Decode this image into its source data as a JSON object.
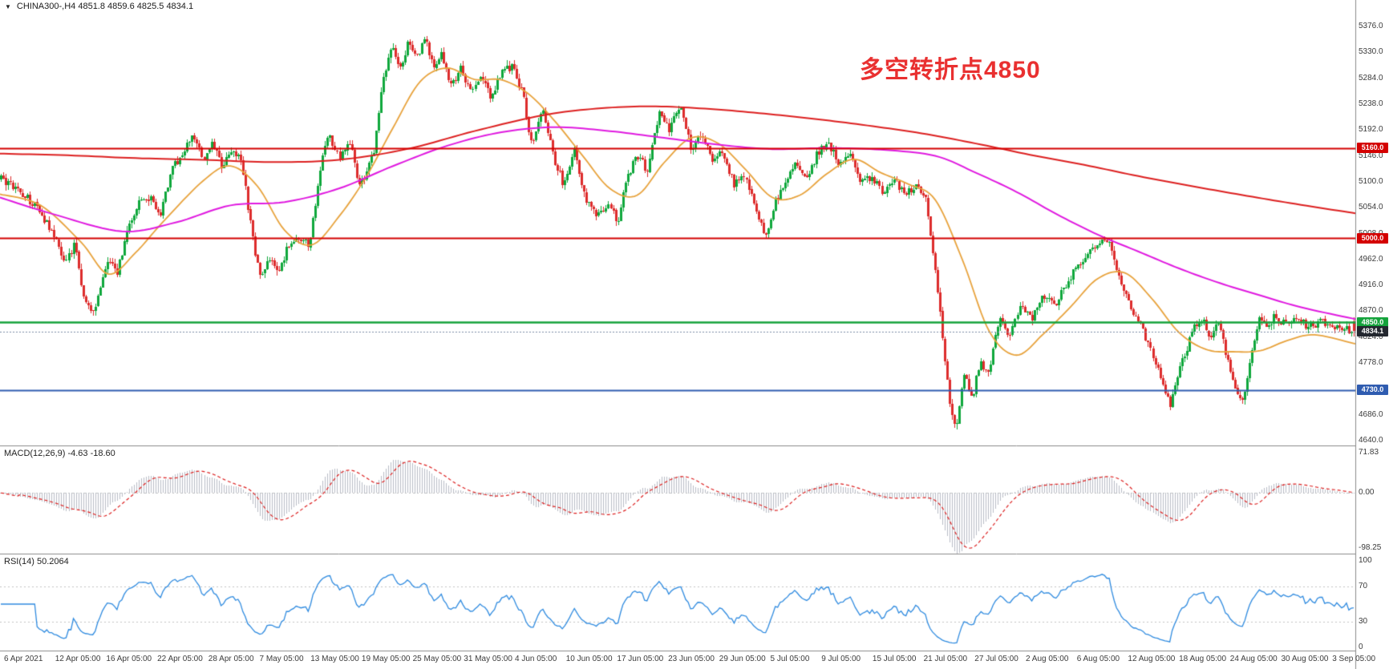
{
  "header": {
    "symbol_info": "CHINA300-,H4  4851.8 4859.6 4825.5 4834.1",
    "collapse_glyph": "▼"
  },
  "annotation": {
    "text": "多空转折点4850",
    "color": "#e93030"
  },
  "panels": {
    "macd": {
      "label": "MACD(12,26,9) -4.63 -18.60",
      "axis_labels": [
        {
          "text": "71.83",
          "value": 71.83
        },
        {
          "text": "0.00",
          "value": 0
        },
        {
          "text": "-98.25",
          "value": -98.25
        }
      ]
    },
    "rsi": {
      "label": "RSI(14) 50.2064",
      "axis_labels": [
        {
          "text": "100",
          "value": 100
        },
        {
          "text": "70",
          "value": 70
        },
        {
          "text": "30",
          "value": 30
        },
        {
          "text": "0",
          "value": 0
        }
      ]
    }
  },
  "price_axis": {
    "tick_labels": [
      "5376.0",
      "5330.0",
      "5284.0",
      "5238.0",
      "5192.0",
      "5146.0",
      "5100.0",
      "5054.0",
      "5008.0",
      "4962.0",
      "4916.0",
      "4870.0",
      "4824.0",
      "4778.0",
      "4732.0",
      "4686.0",
      "4640.0"
    ]
  },
  "time_axis": {
    "labels": [
      "6 Apr 2021",
      "12 Apr 05:00",
      "16 Apr 05:00",
      "22 Apr 05:00",
      "28 Apr 05:00",
      "7 May 05:00",
      "13 May 05:00",
      "19 May 05:00",
      "25 May 05:00",
      "31 May 05:00",
      "4 Jun 05:00",
      "10 Jun 05:00",
      "17 Jun 05:00",
      "23 Jun 05:00",
      "29 Jun 05:00",
      "5 Jul 05:00",
      "9 Jul 05:00",
      "15 Jul 05:00",
      "21 Jul 05:00",
      "27 Jul 05:00",
      "2 Aug 05:00",
      "6 Aug 05:00",
      "12 Aug 05:00",
      "18 Aug 05:00",
      "24 Aug 05:00",
      "30 Aug 05:00",
      "3 Sep 05:00"
    ]
  },
  "colors": {
    "bull": "#0fa83c",
    "bear": "#dd2c2c",
    "ma_fast": "#e8a33d",
    "ma_mid": "#e01ae0",
    "ma_slow": "#dd2020",
    "level_red": "#d40000",
    "level_green": "#15a33c",
    "level_blue": "#2f5cb0",
    "current_line": "#7c8ea6",
    "current_tag": "#23272f",
    "macd_hist": "#b9bdc6",
    "macd_signal": "#dd2020",
    "rsi_line": "#2f8be0",
    "grid_dash": "#c4c4c4",
    "separator": "#8a8a8a",
    "axis_text": "#3b3b3b"
  },
  "chart_data": {
    "type": "candlestick",
    "symbol": "CHINA300-",
    "timeframe": "H4",
    "title": "CHINA300- H4 with MACD(12,26,9) and RSI(14)",
    "ohlc_current": {
      "open": 4851.8,
      "high": 4859.6,
      "low": 4825.5,
      "close": 4834.1
    },
    "price_axis_range": {
      "max": 5376,
      "min": 4640,
      "tick_step": 46
    },
    "n_candles": 560,
    "noise_seed": 12345,
    "price_anchors": [
      [
        0.0,
        5105
      ],
      [
        0.008,
        5092
      ],
      [
        0.016,
        5078
      ],
      [
        0.024,
        5062
      ],
      [
        0.032,
        5035
      ],
      [
        0.04,
        5000
      ],
      [
        0.048,
        4956
      ],
      [
        0.054,
        4992
      ],
      [
        0.06,
        4906
      ],
      [
        0.066,
        4866
      ],
      [
        0.072,
        4896
      ],
      [
        0.078,
        4958
      ],
      [
        0.086,
        4940
      ],
      [
        0.094,
        5022
      ],
      [
        0.102,
        5062
      ],
      [
        0.11,
        5070
      ],
      [
        0.118,
        5046
      ],
      [
        0.126,
        5118
      ],
      [
        0.134,
        5152
      ],
      [
        0.142,
        5182
      ],
      [
        0.15,
        5138
      ],
      [
        0.156,
        5166
      ],
      [
        0.163,
        5128
      ],
      [
        0.17,
        5156
      ],
      [
        0.178,
        5134
      ],
      [
        0.186,
        4998
      ],
      [
        0.192,
        4928
      ],
      [
        0.198,
        4966
      ],
      [
        0.205,
        4934
      ],
      [
        0.212,
        4986
      ],
      [
        0.22,
        5002
      ],
      [
        0.228,
        4984
      ],
      [
        0.236,
        5122
      ],
      [
        0.242,
        5186
      ],
      [
        0.25,
        5140
      ],
      [
        0.258,
        5172
      ],
      [
        0.264,
        5092
      ],
      [
        0.27,
        5112
      ],
      [
        0.276,
        5162
      ],
      [
        0.282,
        5282
      ],
      [
        0.289,
        5338
      ],
      [
        0.295,
        5298
      ],
      [
        0.301,
        5348
      ],
      [
        0.307,
        5316
      ],
      [
        0.313,
        5358
      ],
      [
        0.32,
        5298
      ],
      [
        0.326,
        5330
      ],
      [
        0.332,
        5268
      ],
      [
        0.34,
        5302
      ],
      [
        0.348,
        5256
      ],
      [
        0.355,
        5290
      ],
      [
        0.362,
        5250
      ],
      [
        0.37,
        5296
      ],
      [
        0.378,
        5306
      ],
      [
        0.386,
        5252
      ],
      [
        0.392,
        5164
      ],
      [
        0.4,
        5228
      ],
      [
        0.408,
        5148
      ],
      [
        0.416,
        5094
      ],
      [
        0.424,
        5158
      ],
      [
        0.432,
        5072
      ],
      [
        0.44,
        5036
      ],
      [
        0.448,
        5060
      ],
      [
        0.456,
        5030
      ],
      [
        0.462,
        5104
      ],
      [
        0.47,
        5148
      ],
      [
        0.478,
        5118
      ],
      [
        0.486,
        5224
      ],
      [
        0.494,
        5192
      ],
      [
        0.502,
        5240
      ],
      [
        0.51,
        5158
      ],
      [
        0.518,
        5188
      ],
      [
        0.526,
        5138
      ],
      [
        0.534,
        5154
      ],
      [
        0.542,
        5094
      ],
      [
        0.55,
        5114
      ],
      [
        0.558,
        5044
      ],
      [
        0.565,
        5000
      ],
      [
        0.572,
        5064
      ],
      [
        0.58,
        5104
      ],
      [
        0.588,
        5134
      ],
      [
        0.596,
        5108
      ],
      [
        0.604,
        5154
      ],
      [
        0.612,
        5168
      ],
      [
        0.62,
        5128
      ],
      [
        0.628,
        5150
      ],
      [
        0.636,
        5096
      ],
      [
        0.644,
        5110
      ],
      [
        0.652,
        5080
      ],
      [
        0.66,
        5102
      ],
      [
        0.668,
        5076
      ],
      [
        0.676,
        5096
      ],
      [
        0.684,
        5068
      ],
      [
        0.69,
        4952
      ],
      [
        0.696,
        4824
      ],
      [
        0.702,
        4694
      ],
      [
        0.706,
        4660
      ],
      [
        0.712,
        4756
      ],
      [
        0.718,
        4718
      ],
      [
        0.724,
        4782
      ],
      [
        0.73,
        4758
      ],
      [
        0.738,
        4856
      ],
      [
        0.746,
        4828
      ],
      [
        0.754,
        4880
      ],
      [
        0.762,
        4858
      ],
      [
        0.77,
        4900
      ],
      [
        0.778,
        4878
      ],
      [
        0.786,
        4912
      ],
      [
        0.794,
        4944
      ],
      [
        0.802,
        4968
      ],
      [
        0.81,
        4990
      ],
      [
        0.818,
        5000
      ],
      [
        0.826,
        4938
      ],
      [
        0.834,
        4880
      ],
      [
        0.842,
        4850
      ],
      [
        0.85,
        4798
      ],
      [
        0.858,
        4748
      ],
      [
        0.864,
        4700
      ],
      [
        0.87,
        4762
      ],
      [
        0.876,
        4802
      ],
      [
        0.882,
        4842
      ],
      [
        0.888,
        4860
      ],
      [
        0.894,
        4820
      ],
      [
        0.9,
        4850
      ],
      [
        0.906,
        4788
      ],
      [
        0.912,
        4730
      ],
      [
        0.918,
        4706
      ],
      [
        0.924,
        4792
      ],
      [
        0.93,
        4862
      ],
      [
        0.936,
        4844
      ],
      [
        0.942,
        4862
      ],
      [
        0.95,
        4846
      ],
      [
        0.958,
        4856
      ],
      [
        0.966,
        4842
      ],
      [
        0.975,
        4852
      ],
      [
        0.985,
        4844
      ],
      [
        1.0,
        4834
      ]
    ],
    "ma_slow_anchors": [
      [
        0.0,
        5150
      ],
      [
        0.05,
        5147
      ],
      [
        0.1,
        5142
      ],
      [
        0.15,
        5139
      ],
      [
        0.2,
        5135
      ],
      [
        0.25,
        5139
      ],
      [
        0.3,
        5158
      ],
      [
        0.35,
        5190
      ],
      [
        0.4,
        5218
      ],
      [
        0.44,
        5230
      ],
      [
        0.48,
        5234
      ],
      [
        0.52,
        5230
      ],
      [
        0.56,
        5222
      ],
      [
        0.6,
        5212
      ],
      [
        0.64,
        5200
      ],
      [
        0.68,
        5186
      ],
      [
        0.72,
        5168
      ],
      [
        0.76,
        5148
      ],
      [
        0.8,
        5130
      ],
      [
        0.84,
        5110
      ],
      [
        0.88,
        5092
      ],
      [
        0.92,
        5075
      ],
      [
        0.96,
        5059
      ],
      [
        1.0,
        5044
      ]
    ],
    "ma_mid_anchors": [
      [
        0.0,
        5072
      ],
      [
        0.04,
        5042
      ],
      [
        0.09,
        5012
      ],
      [
        0.13,
        5028
      ],
      [
        0.17,
        5058
      ],
      [
        0.21,
        5064
      ],
      [
        0.25,
        5088
      ],
      [
        0.29,
        5128
      ],
      [
        0.33,
        5164
      ],
      [
        0.37,
        5188
      ],
      [
        0.41,
        5197
      ],
      [
        0.45,
        5190
      ],
      [
        0.49,
        5178
      ],
      [
        0.53,
        5166
      ],
      [
        0.57,
        5158
      ],
      [
        0.61,
        5160
      ],
      [
        0.65,
        5157
      ],
      [
        0.69,
        5146
      ],
      [
        0.72,
        5116
      ],
      [
        0.75,
        5082
      ],
      [
        0.78,
        5042
      ],
      [
        0.81,
        5006
      ],
      [
        0.84,
        4976
      ],
      [
        0.87,
        4946
      ],
      [
        0.9,
        4920
      ],
      [
        0.93,
        4898
      ],
      [
        0.96,
        4877
      ],
      [
        1.0,
        4856
      ]
    ],
    "ma_fast_anchors": [
      [
        0.0,
        5078
      ],
      [
        0.03,
        5058
      ],
      [
        0.06,
        4992
      ],
      [
        0.08,
        4936
      ],
      [
        0.1,
        4974
      ],
      [
        0.12,
        5028
      ],
      [
        0.15,
        5102
      ],
      [
        0.17,
        5128
      ],
      [
        0.19,
        5092
      ],
      [
        0.21,
        5014
      ],
      [
        0.23,
        4988
      ],
      [
        0.25,
        5038
      ],
      [
        0.27,
        5108
      ],
      [
        0.29,
        5196
      ],
      [
        0.31,
        5278
      ],
      [
        0.33,
        5302
      ],
      [
        0.35,
        5282
      ],
      [
        0.37,
        5281
      ],
      [
        0.39,
        5256
      ],
      [
        0.41,
        5206
      ],
      [
        0.43,
        5146
      ],
      [
        0.45,
        5088
      ],
      [
        0.47,
        5076
      ],
      [
        0.49,
        5134
      ],
      [
        0.51,
        5178
      ],
      [
        0.53,
        5168
      ],
      [
        0.55,
        5122
      ],
      [
        0.57,
        5072
      ],
      [
        0.59,
        5076
      ],
      [
        0.61,
        5114
      ],
      [
        0.63,
        5140
      ],
      [
        0.65,
        5116
      ],
      [
        0.67,
        5096
      ],
      [
        0.69,
        5068
      ],
      [
        0.71,
        4962
      ],
      [
        0.73,
        4834
      ],
      [
        0.75,
        4792
      ],
      [
        0.77,
        4830
      ],
      [
        0.79,
        4878
      ],
      [
        0.81,
        4928
      ],
      [
        0.83,
        4938
      ],
      [
        0.85,
        4892
      ],
      [
        0.87,
        4832
      ],
      [
        0.89,
        4802
      ],
      [
        0.91,
        4798
      ],
      [
        0.93,
        4800
      ],
      [
        0.95,
        4818
      ],
      [
        0.97,
        4828
      ],
      [
        1.0,
        4812
      ]
    ],
    "levels": [
      {
        "label": "5160.0",
        "value": 5160,
        "color_key": "level_red"
      },
      {
        "label": "5000.0",
        "value": 5000,
        "color_key": "level_red"
      },
      {
        "label": "4850.0",
        "value": 4850,
        "color_key": "level_green"
      },
      {
        "label": "4730.0",
        "value": 4730,
        "color_key": "level_blue"
      }
    ],
    "current_price": {
      "label": "4834.1",
      "value": 4834.1
    },
    "macd": {
      "fast": 12,
      "slow": 26,
      "signal": 9,
      "value": -4.63,
      "signal_value": -18.6,
      "axis_max": 71.83,
      "axis_min": -98.25
    },
    "rsi": {
      "period": 14,
      "value": 50.2064,
      "levels": [
        70,
        30
      ],
      "axis_max": 100,
      "axis_min": 0
    }
  }
}
